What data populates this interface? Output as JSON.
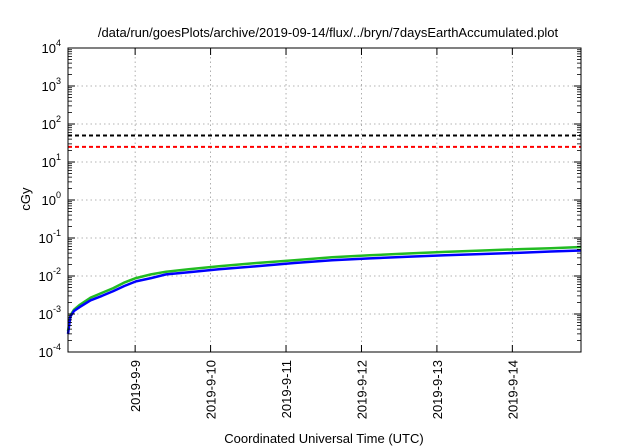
{
  "chart_data": {
    "type": "line",
    "title": "/data/run/goesPlots/archive/2019-09-14/flux/../bryn/7daysEarthAccumulated.plot",
    "xlabel": "Coordinated Universal Time (UTC)",
    "ylabel": "cGy",
    "yscale": "log",
    "ylim": [
      0.0001,
      10000
    ],
    "xlim": [
      0,
      6.8
    ],
    "grid": true,
    "y_ticks": [
      {
        "base": "10",
        "exp": "-4",
        "value": 0.0001
      },
      {
        "base": "10",
        "exp": "-3",
        "value": 0.001
      },
      {
        "base": "10",
        "exp": "-2",
        "value": 0.01
      },
      {
        "base": "10",
        "exp": "-1",
        "value": 0.1
      },
      {
        "base": "10",
        "exp": "0",
        "value": 1
      },
      {
        "base": "10",
        "exp": "1",
        "value": 10
      },
      {
        "base": "10",
        "exp": "2",
        "value": 100
      },
      {
        "base": "10",
        "exp": "3",
        "value": 1000
      },
      {
        "base": "10",
        "exp": "4",
        "value": 10000
      }
    ],
    "x_ticks": [
      {
        "label": "2019-9-9",
        "value": 0.89
      },
      {
        "label": "2019-9-10",
        "value": 1.89
      },
      {
        "label": "2019-9-11",
        "value": 2.89
      },
      {
        "label": "2019-9-12",
        "value": 3.89
      },
      {
        "label": "2019-9-13",
        "value": 4.89
      },
      {
        "label": "2019-9-14",
        "value": 5.89
      }
    ],
    "thresholds": [
      {
        "value": 50,
        "color": "#000000"
      },
      {
        "value": 25,
        "color": "#ff0000"
      }
    ],
    "series": [
      {
        "color": "#22bb22",
        "x": [
          0,
          0.03,
          0.08,
          0.15,
          0.3,
          0.45,
          0.6,
          0.75,
          0.9,
          1.1,
          1.3,
          1.6,
          2.0,
          2.5,
          3.0,
          3.5,
          4.0,
          4.5,
          5.0,
          5.5,
          6.0,
          6.4,
          6.8
        ],
        "y": [
          0.00035,
          0.0009,
          0.0013,
          0.0017,
          0.0027,
          0.0036,
          0.0048,
          0.0068,
          0.0088,
          0.011,
          0.013,
          0.015,
          0.018,
          0.022,
          0.026,
          0.031,
          0.035,
          0.039,
          0.043,
          0.047,
          0.051,
          0.054,
          0.058
        ]
      },
      {
        "color": "#0000ff",
        "x": [
          0,
          0.03,
          0.08,
          0.15,
          0.3,
          0.45,
          0.6,
          0.75,
          0.9,
          1.1,
          1.3,
          1.6,
          2.0,
          2.5,
          3.0,
          3.5,
          4.0,
          4.5,
          5.0,
          5.5,
          6.0,
          6.4,
          6.8
        ],
        "y": [
          0.0003,
          0.00085,
          0.0012,
          0.0015,
          0.0023,
          0.003,
          0.004,
          0.0055,
          0.0072,
          0.0088,
          0.011,
          0.0125,
          0.015,
          0.018,
          0.022,
          0.026,
          0.029,
          0.032,
          0.035,
          0.038,
          0.041,
          0.044,
          0.047
        ]
      }
    ]
  }
}
